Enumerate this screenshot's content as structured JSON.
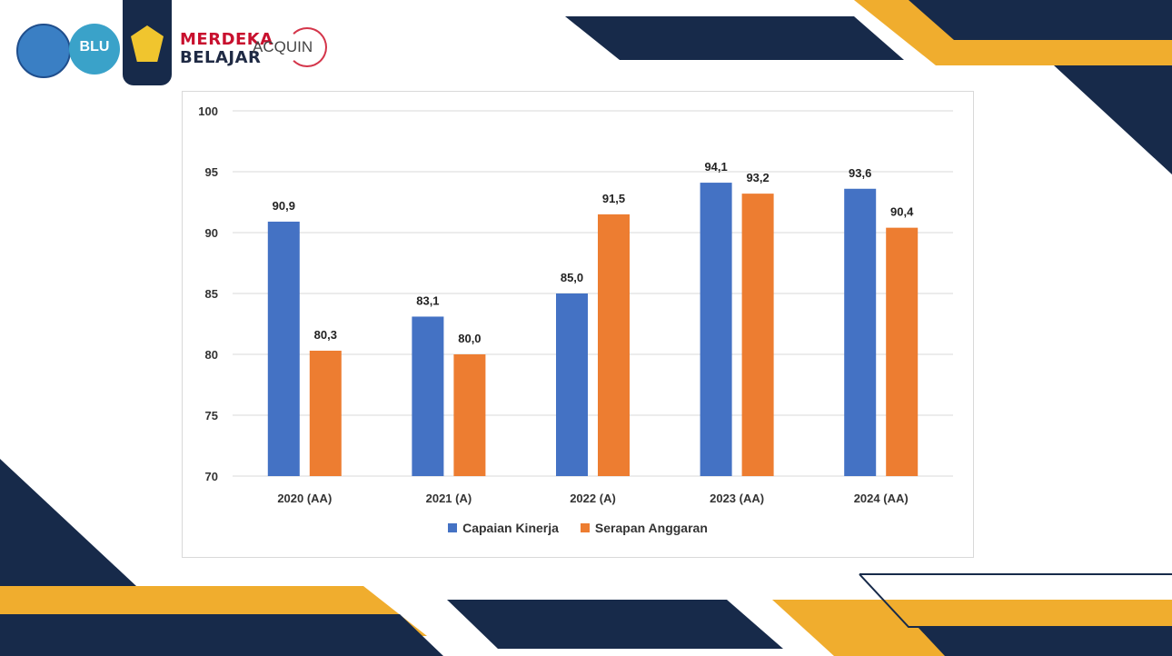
{
  "header": {
    "logo_blu": "BLU",
    "merdeka_line1": "MERDEKA",
    "merdeka_line2": "BELAJAR",
    "acquin": "ACQUIN"
  },
  "colors": {
    "navy": "#172a4a",
    "gold": "#f0ad2e",
    "series1": "#4472c4",
    "series2": "#ed7d31"
  },
  "chart_data": {
    "type": "bar",
    "categories": [
      "2020 (AA)",
      "2021 (A)",
      "2022 (A)",
      "2023 (AA)",
      "2024 (AA)"
    ],
    "series": [
      {
        "name": "Capaian Kinerja",
        "values": [
          90.9,
          83.1,
          85.0,
          94.1,
          93.6
        ],
        "labels": [
          "90,9",
          "83,1",
          "85,0",
          "94,1",
          "93,6"
        ],
        "color": "#4472c4"
      },
      {
        "name": "Serapan Anggaran",
        "values": [
          80.3,
          80.0,
          91.5,
          93.2,
          90.4
        ],
        "labels": [
          "80,3",
          "80,0",
          "91,5",
          "93,2",
          "90,4"
        ],
        "color": "#ed7d31"
      }
    ],
    "ylim": [
      70,
      100
    ],
    "yticks": [
      "70",
      "75",
      "80",
      "85",
      "90",
      "95",
      "100"
    ],
    "grid": true,
    "legend": "bottom"
  }
}
